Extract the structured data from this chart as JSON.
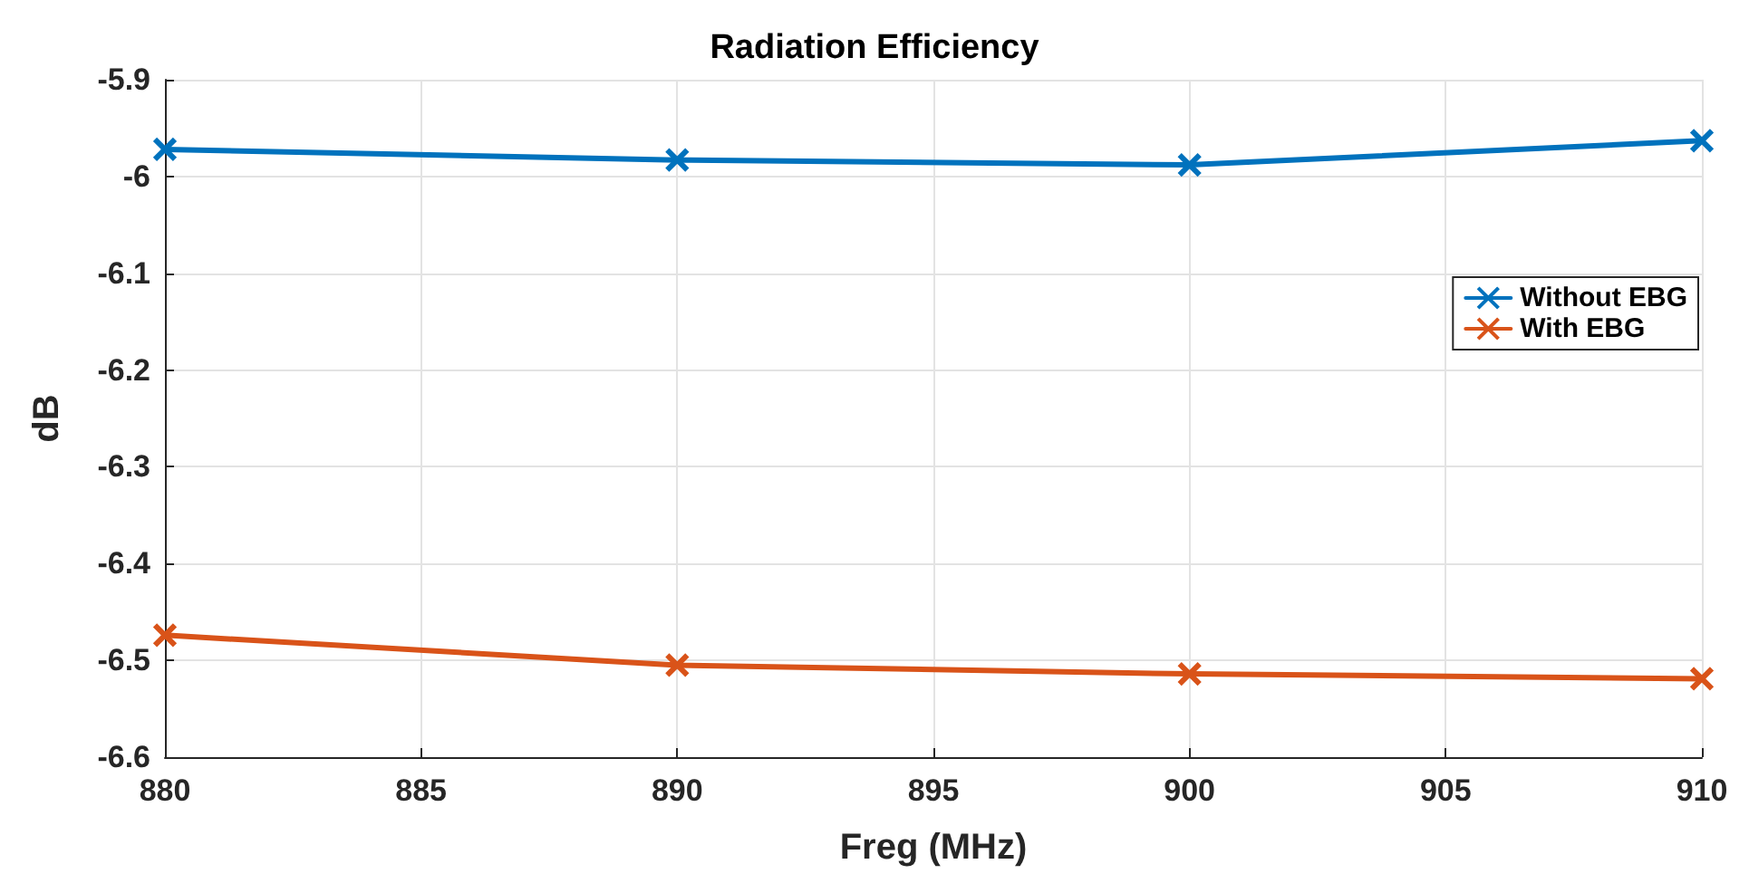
{
  "chart_data": {
    "type": "line",
    "title": "Radiation Efficiency",
    "xlabel": "Freg (MHz)",
    "ylabel": "dB",
    "x": [
      880,
      890,
      900,
      910
    ],
    "series": [
      {
        "name": "Without EBG",
        "color": "#0072bd",
        "marker": "cross",
        "values": [
          -5.972,
          -5.983,
          -5.988,
          -5.963
        ]
      },
      {
        "name": "With EBG",
        "color": "#d95319",
        "marker": "cross",
        "values": [
          -6.474,
          -6.505,
          -6.514,
          -6.519
        ]
      }
    ],
    "xlim": [
      880,
      910
    ],
    "xticks": [
      880,
      885,
      890,
      895,
      900,
      905,
      910
    ],
    "ylim": [
      -6.6,
      -5.9
    ],
    "yticks": [
      -6.6,
      -6.5,
      -6.4,
      -6.3,
      -6.2,
      -6.1,
      -6,
      -5.9
    ],
    "grid": true,
    "legend": "right",
    "line_style": "solid"
  }
}
